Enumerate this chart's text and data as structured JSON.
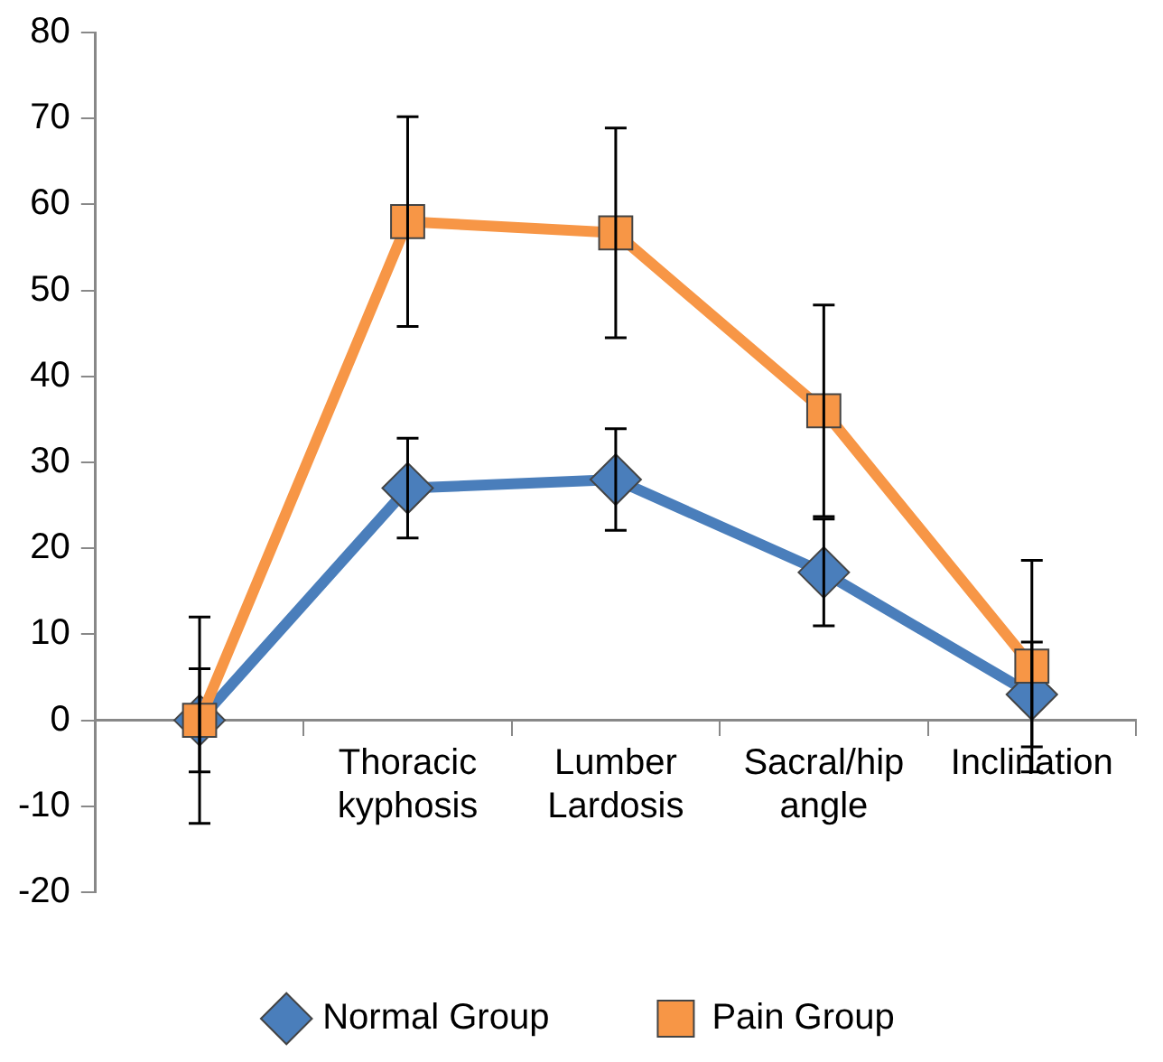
{
  "chart_data": {
    "type": "line",
    "categories": [
      null,
      "Thoracic kyphosis",
      "Lumber Lardosis",
      "Sacral/hip angle",
      "Inclination"
    ],
    "series": [
      {
        "name": "Normal Group",
        "color": "#4a7ebb",
        "marker": "diamond",
        "values": [
          0,
          27,
          28,
          17.2,
          3
        ],
        "errors": [
          6,
          5.8,
          5.9,
          6.2,
          6.1
        ]
      },
      {
        "name": "Pain Group",
        "color": "#f79646",
        "marker": "square",
        "values": [
          0,
          58,
          56.7,
          36,
          6.3
        ],
        "errors": [
          12,
          12.2,
          12.2,
          12.3,
          12.3
        ]
      }
    ],
    "ylim": [
      -20,
      80
    ],
    "yticks": [
      -20,
      -10,
      0,
      10,
      20,
      30,
      40,
      50,
      60,
      70,
      80
    ],
    "grid": false,
    "legend": "bottom"
  }
}
